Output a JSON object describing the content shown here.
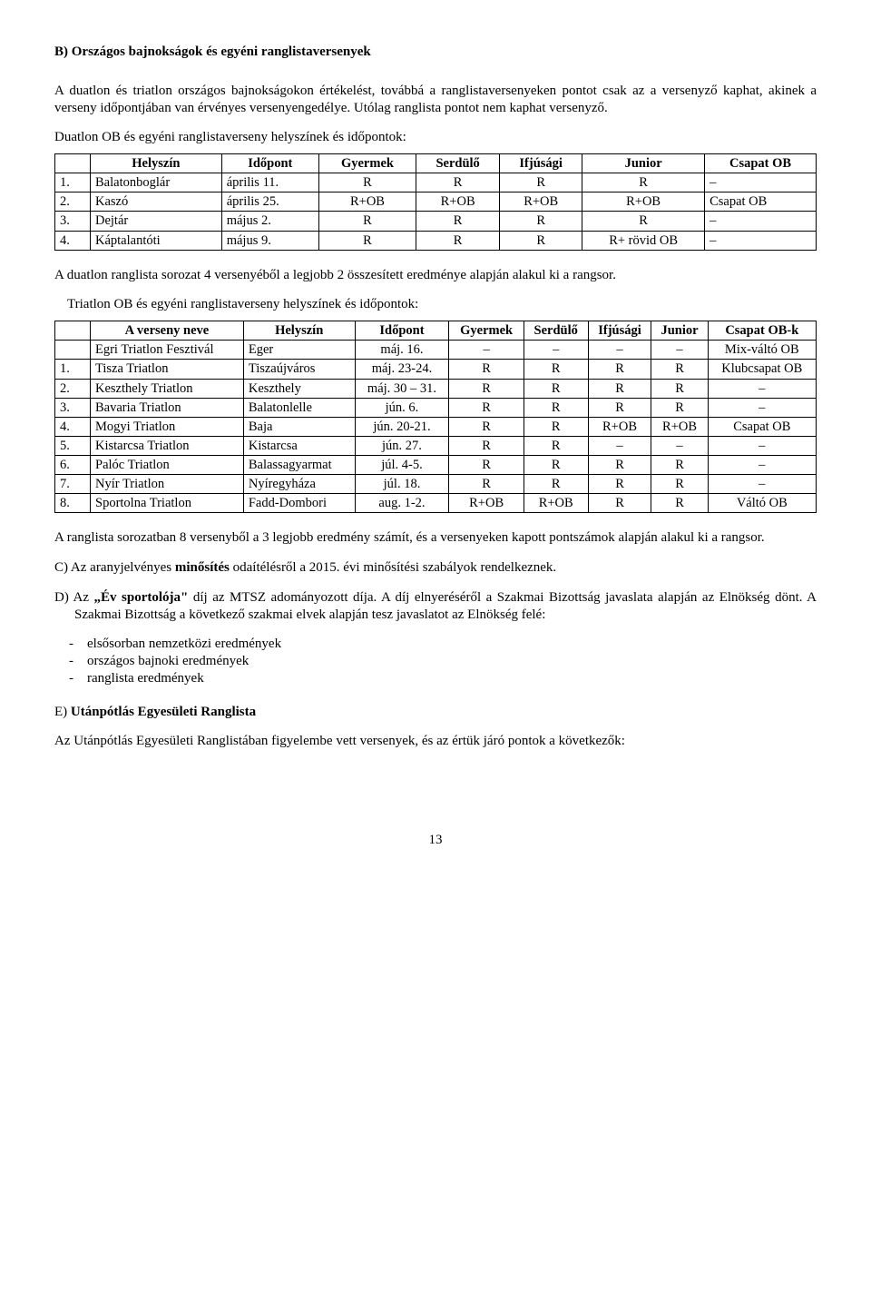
{
  "heading_b": "B) Országos bajnokságok és egyéni ranglistaversenyek",
  "para1": "A duatlon és triatlon országos bajnokságokon értékelést, továbbá a ranglistaversenyeken pontot csak az a versenyző kaphat, akinek a verseny időpontjában van érvényes versenyengedélye. Utólag ranglista pontot nem kaphat versenyző.",
  "duatlon_intro": "Duatlon OB és egyéni ranglistaverseny helyszínek és időpontok:",
  "table1": {
    "headers": [
      "",
      "Helyszín",
      "Időpont",
      "Gyermek",
      "Serdülő",
      "Ifjúsági",
      "Junior",
      "Csapat OB"
    ],
    "rows": [
      [
        "1.",
        "Balatonboglár",
        "április 11.",
        "R",
        "R",
        "R",
        "R",
        "–"
      ],
      [
        "2.",
        "Kaszó",
        "április 25.",
        "R+OB",
        "R+OB",
        "R+OB",
        "R+OB",
        "Csapat OB"
      ],
      [
        "3.",
        "Dejtár",
        "május 2.",
        "R",
        "R",
        "R",
        "R",
        "–"
      ],
      [
        "4.",
        "Káptalantóti",
        "május 9.",
        "R",
        "R",
        "R",
        "R+ rövid OB",
        "–"
      ]
    ]
  },
  "duatlon_after": "A duatlon ranglista sorozat 4 versenyéből a legjobb 2 összesített eredménye alapján alakul ki a rangsor.",
  "triatlon_intro": "Triatlon OB és egyéni ranglistaverseny helyszínek és időpontok:",
  "table2": {
    "headers": [
      "",
      "A verseny neve",
      "Helyszín",
      "Időpont",
      "Gyermek",
      "Serdülő",
      "Ifjúsági",
      "Junior",
      "Csapat OB-k"
    ],
    "rows": [
      [
        "",
        "Egri Triatlon Fesztivál",
        "Eger",
        "máj. 16.",
        "–",
        "–",
        "–",
        "–",
        "Mix-váltó OB"
      ],
      [
        "1.",
        "Tisza Triatlon",
        "Tiszaújváros",
        "máj. 23-24.",
        "R",
        "R",
        "R",
        "R",
        "Klubcsapat OB"
      ],
      [
        "2.",
        "Keszthely Triatlon",
        "Keszthely",
        "máj. 30 – 31.",
        "R",
        "R",
        "R",
        "R",
        "–"
      ],
      [
        "3.",
        "Bavaria Triatlon",
        "Balatonlelle",
        "jún. 6.",
        "R",
        "R",
        "R",
        "R",
        "–"
      ],
      [
        "4.",
        "Mogyi Triatlon",
        "Baja",
        "jún. 20-21.",
        "R",
        "R",
        "R+OB",
        "R+OB",
        "Csapat OB"
      ],
      [
        "5.",
        "Kistarcsa Triatlon",
        "Kistarcsa",
        "jún. 27.",
        "R",
        "R",
        "–",
        "–",
        "–"
      ],
      [
        "6.",
        "Palóc Triatlon",
        "Balassagyarmat",
        "júl. 4-5.",
        "R",
        "R",
        "R",
        "R",
        "–"
      ],
      [
        "7.",
        "Nyír Triatlon",
        "Nyíregyháza",
        "júl. 18.",
        "R",
        "R",
        "R",
        "R",
        "–"
      ],
      [
        "8.",
        "Sportolna Triatlon",
        "Fadd-Dombori",
        "aug. 1-2.",
        "R+OB",
        "R+OB",
        "R",
        "R",
        "Váltó OB"
      ]
    ]
  },
  "triatlon_after": "A ranglista sorozatban 8 versenyből a 3 legjobb eredmény számít, és a versenyeken kapott pontszámok alapján alakul ki a rangsor.",
  "c_line_pre": "C) Az aranyjelvényes ",
  "c_line_bold": "minősítés",
  "c_line_post": " odaítélésről a 2015. évi minősítési szabályok rendelkeznek.",
  "d_line_pre": "D) Az ",
  "d_line_bold": "„Év sportolója\"",
  "d_line_post": " díj az MTSZ adományozott díja. A díj elnyeréséről a Szakmai Bizottság javaslata alapján az Elnökség dönt. A Szakmai Bizottság a következő szakmai elvek alapján tesz javaslatot az Elnökség felé:",
  "bullets": [
    "elsősorban nemzetközi eredmények",
    "országos bajnoki eredmények",
    "ranglista eredmények"
  ],
  "e_pre": "E) ",
  "e_bold": "Utánpótlás Egyesületi Ranglista",
  "e_para": "Az Utánpótlás Egyesületi Ranglistában figyelembe vett versenyek, és az értük járó pontok a következők:",
  "page_number": "13"
}
